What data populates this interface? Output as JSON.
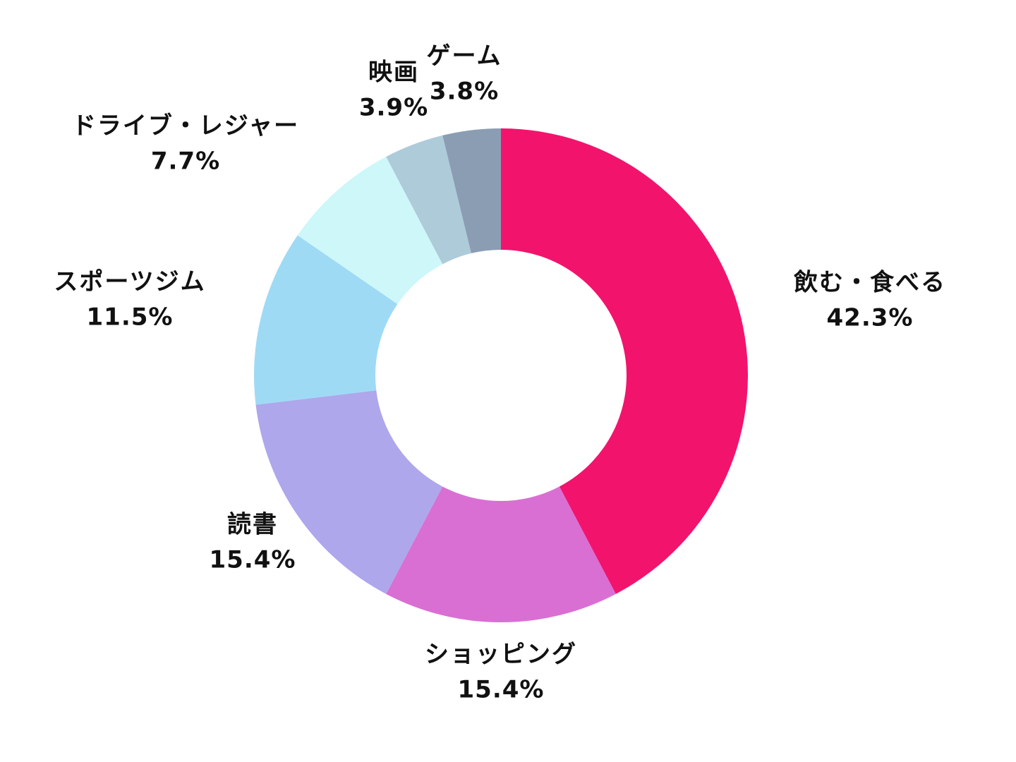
{
  "chart_data": {
    "type": "pie",
    "variant": "donut",
    "direction": "clockwise",
    "start_angle_deg": 0,
    "background": "#FFFFFF",
    "text_color": "#111111",
    "slices": [
      {
        "name": "eat-drink",
        "label": "飲む・食べる",
        "value": 42.3,
        "percent_text": "42.3%",
        "color": "#F2136D"
      },
      {
        "name": "shopping",
        "label": "ショッピング",
        "value": 15.4,
        "percent_text": "15.4%",
        "color": "#D96FD3"
      },
      {
        "name": "reading",
        "label": "読書",
        "value": 15.4,
        "percent_text": "15.4%",
        "color": "#AEA7EC"
      },
      {
        "name": "gym",
        "label": "スポーツジム",
        "value": 11.5,
        "percent_text": "11.5%",
        "color": "#9FDAF5"
      },
      {
        "name": "drive-leisure",
        "label": "ドライブ・レジャー",
        "value": 7.7,
        "percent_text": "7.7%",
        "color": "#CDF7F9"
      },
      {
        "name": "movie",
        "label": "映画",
        "value": 3.9,
        "percent_text": "3.9%",
        "color": "#AECBDA"
      },
      {
        "name": "game",
        "label": "ゲーム",
        "value": 3.8,
        "percent_text": "3.8%",
        "color": "#8A9DB3"
      }
    ]
  }
}
